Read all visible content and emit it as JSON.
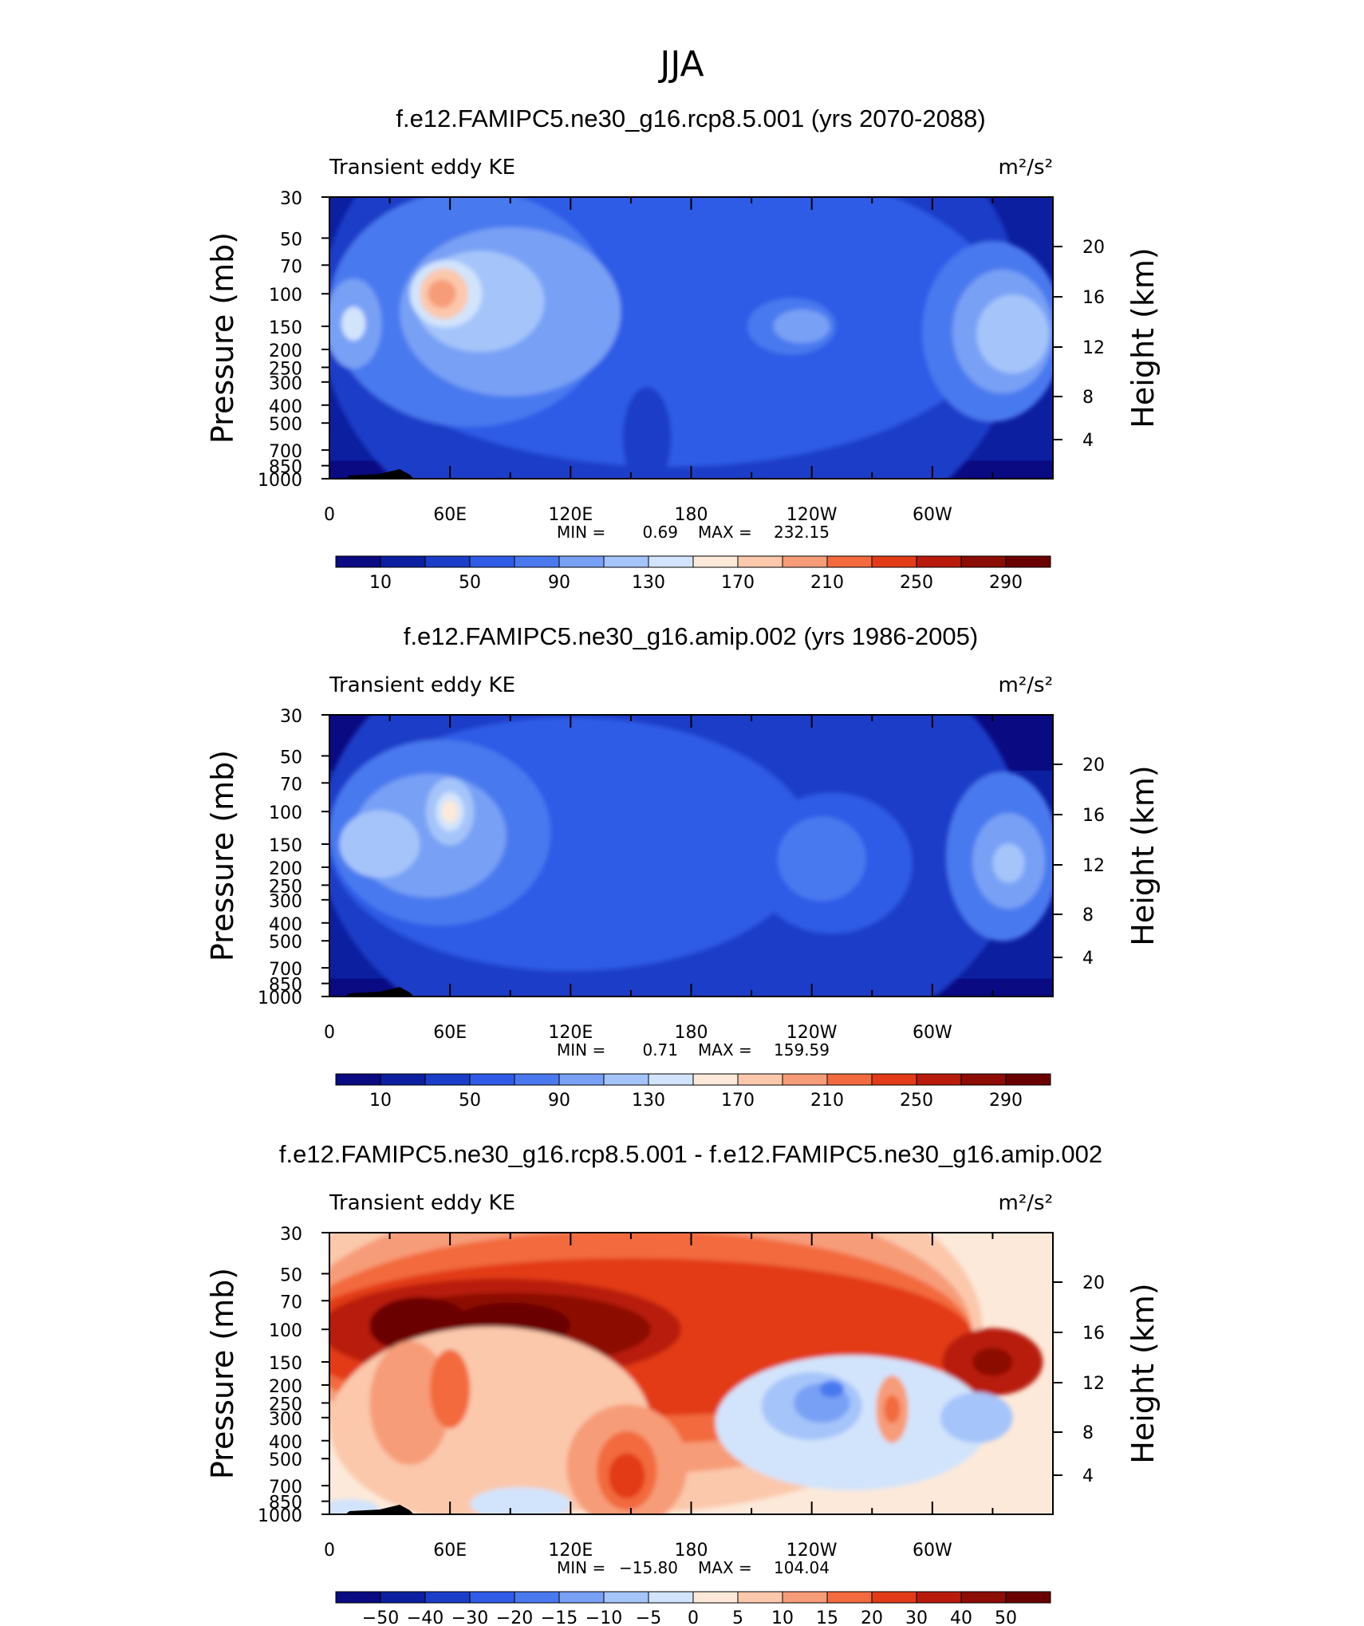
{
  "figure": {
    "title": "JJA"
  },
  "chart_data": [
    {
      "type": "heatmap",
      "title": "f.e12.FAMIPC5.ne30_g16.rcp8.5.001 (yrs 2070-2088)",
      "left_label": "Transient eddy KE",
      "units_label": "m²/s²",
      "ylabel": "Pressure (mb)",
      "y2label": "Height (km)",
      "x_tick_labels": [
        "0",
        "60E",
        "120E",
        "180",
        "120W",
        "60W"
      ],
      "y_tick_labels": [
        "30",
        "50",
        "70",
        "100",
        "150",
        "200",
        "250",
        "300",
        "400",
        "500",
        "700",
        "850",
        "1000"
      ],
      "y2_tick_labels": [
        "20",
        "16",
        "12",
        "8",
        "4"
      ],
      "stats": {
        "min_label": "MIN =",
        "min": "0.69",
        "max_label": "MAX =",
        "max": "232.15"
      },
      "colorbar_levels": [
        10,
        30,
        50,
        70,
        90,
        110,
        130,
        150,
        170,
        190,
        210,
        230,
        250,
        270,
        290
      ],
      "colorbar_tick_labels": [
        "10",
        "50",
        "90",
        "130",
        "170",
        "210",
        "250",
        "290"
      ],
      "colors": [
        "#0a0a82",
        "#0c1fa0",
        "#1a3ec8",
        "#2f5be6",
        "#4a79ef",
        "#78a0f5",
        "#a5c4fa",
        "#d2e4fc",
        "#fde9d9",
        "#fbc8ac",
        "#f79c78",
        "#f26a3e",
        "#e23b17",
        "#b81a0c",
        "#8c0c06",
        "#6a0000"
      ]
    },
    {
      "type": "heatmap",
      "title": "f.e12.FAMIPC5.ne30_g16.amip.002 (yrs 1986-2005)",
      "left_label": "Transient eddy KE",
      "units_label": "m²/s²",
      "ylabel": "Pressure (mb)",
      "y2label": "Height (km)",
      "x_tick_labels": [
        "0",
        "60E",
        "120E",
        "180",
        "120W",
        "60W"
      ],
      "y_tick_labels": [
        "30",
        "50",
        "70",
        "100",
        "150",
        "200",
        "250",
        "300",
        "400",
        "500",
        "700",
        "850",
        "1000"
      ],
      "y2_tick_labels": [
        "20",
        "16",
        "12",
        "8",
        "4"
      ],
      "stats": {
        "min_label": "MIN =",
        "min": "0.71",
        "max_label": "MAX =",
        "max": "159.59"
      },
      "colorbar_levels": [
        10,
        30,
        50,
        70,
        90,
        110,
        130,
        150,
        170,
        190,
        210,
        230,
        250,
        270,
        290
      ],
      "colorbar_tick_labels": [
        "10",
        "50",
        "90",
        "130",
        "170",
        "210",
        "250",
        "290"
      ],
      "colors": [
        "#0a0a82",
        "#0c1fa0",
        "#1a3ec8",
        "#2f5be6",
        "#4a79ef",
        "#78a0f5",
        "#a5c4fa",
        "#d2e4fc",
        "#fde9d9",
        "#fbc8ac",
        "#f79c78",
        "#f26a3e",
        "#e23b17",
        "#b81a0c",
        "#8c0c06",
        "#6a0000"
      ]
    },
    {
      "type": "heatmap",
      "title": "f.e12.FAMIPC5.ne30_g16.rcp8.5.001 - f.e12.FAMIPC5.ne30_g16.amip.002",
      "left_label": "Transient eddy KE",
      "units_label": "m²/s²",
      "ylabel": "Pressure (mb)",
      "y2label": "Height (km)",
      "x_tick_labels": [
        "0",
        "60E",
        "120E",
        "180",
        "120W",
        "60W"
      ],
      "y_tick_labels": [
        "30",
        "50",
        "70",
        "100",
        "150",
        "200",
        "250",
        "300",
        "400",
        "500",
        "700",
        "850",
        "1000"
      ],
      "y2_tick_labels": [
        "20",
        "16",
        "12",
        "8",
        "4"
      ],
      "stats": {
        "min_label": "MIN =",
        "min": "−15.80",
        "max_label": "MAX =",
        "max": "104.04"
      },
      "colorbar_levels": [
        -50,
        -40,
        -30,
        -20,
        -15,
        -10,
        -5,
        0,
        5,
        10,
        15,
        20,
        30,
        40,
        50
      ],
      "colorbar_tick_labels": [
        "−50",
        "−40",
        "−30",
        "−20",
        "−15",
        "−10",
        "−5",
        "0",
        "5",
        "10",
        "15",
        "20",
        "30",
        "40",
        "50"
      ],
      "colors": [
        "#0a0a82",
        "#0c1fa0",
        "#1a3ec8",
        "#2f5be6",
        "#4a79ef",
        "#78a0f5",
        "#a5c4fa",
        "#d2e4fc",
        "#fde9d9",
        "#fbc8ac",
        "#f79c78",
        "#f26a3e",
        "#e23b17",
        "#b81a0c",
        "#8c0c06",
        "#6a0000"
      ]
    }
  ]
}
